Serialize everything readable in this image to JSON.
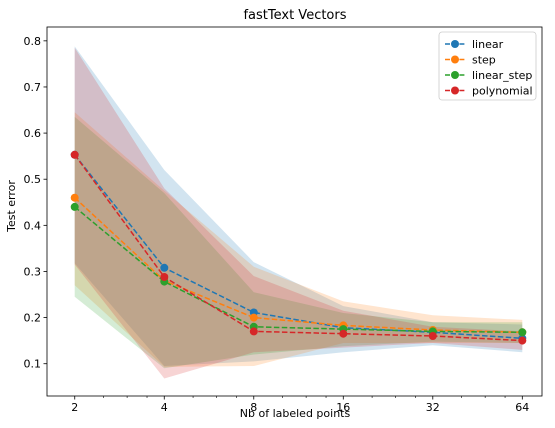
{
  "chart_data": {
    "type": "line",
    "title": "fastText Vectors",
    "xlabel": "Nb of labeled points",
    "ylabel": "Test error",
    "x": [
      2,
      4,
      8,
      16,
      32,
      64
    ],
    "x_scale": "log2",
    "x_ticks": [
      "2",
      "4",
      "8",
      "16",
      "32",
      "64"
    ],
    "ylim": [
      0.03,
      0.83
    ],
    "y_ticks": [
      0.1,
      0.2,
      0.3,
      0.4,
      0.5,
      0.6,
      0.7,
      0.8
    ],
    "y_tick_labels": [
      "0.1",
      "0.2",
      "0.3",
      "0.4",
      "0.5",
      "0.6",
      "0.7",
      "0.8"
    ],
    "grid": false,
    "legend_position": "top-right",
    "series": [
      {
        "name": "linear",
        "color": "#1f77b4",
        "values": [
          0.553,
          0.308,
          0.211,
          0.178,
          0.168,
          0.155
        ],
        "band_low": [
          0.318,
          0.095,
          0.105,
          0.125,
          0.14,
          0.125
        ],
        "band_high": [
          0.788,
          0.52,
          0.32,
          0.225,
          0.19,
          0.185
        ]
      },
      {
        "name": "step",
        "color": "#ff7f0e",
        "values": [
          0.46,
          0.28,
          0.2,
          0.183,
          0.173,
          0.168
        ],
        "band_low": [
          0.27,
          0.093,
          0.095,
          0.145,
          0.145,
          0.145
        ],
        "band_high": [
          0.645,
          0.475,
          0.31,
          0.235,
          0.205,
          0.195
        ]
      },
      {
        "name": "linear_step",
        "color": "#2ca02c",
        "values": [
          0.44,
          0.278,
          0.18,
          0.175,
          0.17,
          0.168
        ],
        "band_low": [
          0.245,
          0.09,
          0.12,
          0.138,
          0.148,
          0.145
        ],
        "band_high": [
          0.635,
          0.47,
          0.255,
          0.21,
          0.19,
          0.19
        ]
      },
      {
        "name": "polynomial",
        "color": "#d62728",
        "values": [
          0.553,
          0.288,
          0.17,
          0.165,
          0.16,
          0.15
        ],
        "band_low": [
          0.315,
          0.068,
          0.125,
          0.135,
          0.145,
          0.13
        ],
        "band_high": [
          0.785,
          0.48,
          0.29,
          0.215,
          0.18,
          0.17
        ]
      }
    ]
  }
}
